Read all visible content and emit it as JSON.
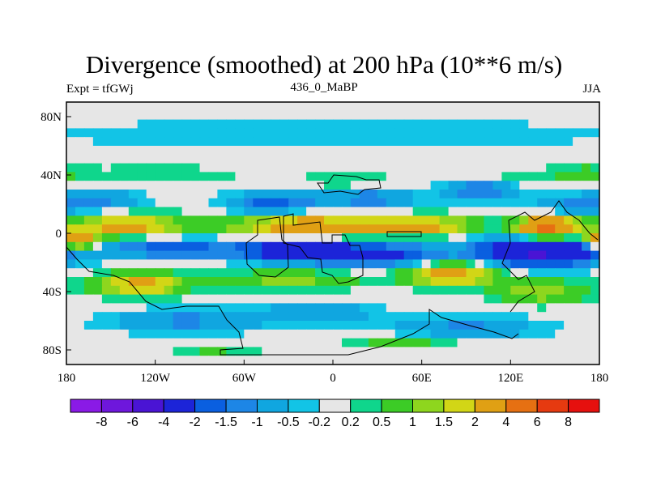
{
  "chart_data": {
    "type": "heatmap",
    "title": "Divergence (smoothed) at 200 hPa (10**6 m/s)",
    "subtitle_left": "Expt = tfGWj",
    "subtitle_center": "436_0_MaBP",
    "subtitle_right": "JJA",
    "xlim": [
      -180,
      180
    ],
    "ylim": [
      -90,
      90
    ],
    "x_ticks": [
      {
        "value": -180,
        "label": "180"
      },
      {
        "value": -120,
        "label": "120W"
      },
      {
        "value": -60,
        "label": "60W"
      },
      {
        "value": 0,
        "label": "0"
      },
      {
        "value": 60,
        "label": "60E"
      },
      {
        "value": 120,
        "label": "120E"
      },
      {
        "value": 180,
        "label": "180"
      }
    ],
    "y_ticks": [
      {
        "value": 80,
        "label": "80N"
      },
      {
        "value": 40,
        "label": "40N"
      },
      {
        "value": 0,
        "label": "0"
      },
      {
        "value": -40,
        "label": "40S"
      },
      {
        "value": -80,
        "label": "80S"
      }
    ],
    "colorbar": {
      "labels": [
        "-8",
        "-6",
        "-4",
        "-2",
        "-1.5",
        "-1",
        "-0.5",
        "-0.2",
        "0.2",
        "0.5",
        "1",
        "1.5",
        "2",
        "4",
        "6",
        "8"
      ],
      "colors": [
        "#8a1ae6",
        "#6e17dc",
        "#4a14d4",
        "#1c24d8",
        "#0a5fe0",
        "#1d86e6",
        "#10a6e0",
        "#12c4e6",
        "#e6e6e6",
        "#0fd68c",
        "#3ccc26",
        "#8ed61e",
        "#d2d616",
        "#e0a014",
        "#e67012",
        "#e63a10",
        "#e6100e"
      ]
    },
    "blobs": [
      {
        "lon": 0,
        "lat": 68,
        "val": -0.5,
        "rlon": 200,
        "rlat": 10
      },
      {
        "lon": -120,
        "lat": 40,
        "val": 0.5,
        "rlon": 60,
        "rlat": 6
      },
      {
        "lon": 10,
        "lat": 36,
        "val": 0.6,
        "rlon": 30,
        "rlat": 7
      },
      {
        "lon": 120,
        "lat": 38,
        "val": 0.5,
        "rlon": 40,
        "rlat": 6
      },
      {
        "lon": 170,
        "lat": 42,
        "val": 0.5,
        "rlon": 20,
        "rlat": 8
      },
      {
        "lon": -160,
        "lat": 22,
        "val": -1.2,
        "rlon": 30,
        "rlat": 8
      },
      {
        "lon": -40,
        "lat": 20,
        "val": -1.8,
        "rlon": 30,
        "rlat": 8
      },
      {
        "lon": 25,
        "lat": 24,
        "val": -1.3,
        "rlon": 30,
        "rlat": 8
      },
      {
        "lon": 100,
        "lat": 30,
        "val": -1.5,
        "rlon": 25,
        "rlat": 8
      },
      {
        "lon": 160,
        "lat": 18,
        "val": -1.0,
        "rlon": 25,
        "rlat": 8
      },
      {
        "lon": -140,
        "lat": 5,
        "val": 2.4,
        "rlon": 40,
        "rlat": 8
      },
      {
        "lon": -20,
        "lat": 5,
        "val": 2.8,
        "rlon": 50,
        "rlat": 8
      },
      {
        "lon": 60,
        "lat": 5,
        "val": 2.2,
        "rlon": 40,
        "rlat": 7
      },
      {
        "lon": 145,
        "lat": 3,
        "val": 5.0,
        "rlon": 20,
        "rlat": 8
      },
      {
        "lon": -175,
        "lat": -5,
        "val": 4.0,
        "rlon": 15,
        "rlat": 6
      },
      {
        "lon": -110,
        "lat": -10,
        "val": -1.8,
        "rlon": 50,
        "rlat": 7
      },
      {
        "lon": -20,
        "lat": -12,
        "val": -3.2,
        "rlon": 40,
        "rlat": 8
      },
      {
        "lon": 40,
        "lat": -15,
        "val": -2.0,
        "rlon": 40,
        "rlat": 8
      },
      {
        "lon": 140,
        "lat": -12,
        "val": -4.5,
        "rlon": 40,
        "rlat": 10
      },
      {
        "lon": -130,
        "lat": -35,
        "val": 2.3,
        "rlon": 30,
        "rlat": 8
      },
      {
        "lon": -30,
        "lat": -32,
        "val": 1.2,
        "rlon": 50,
        "rlat": 7
      },
      {
        "lon": 80,
        "lat": -28,
        "val": 2.6,
        "rlon": 30,
        "rlat": 8
      },
      {
        "lon": 140,
        "lat": -40,
        "val": 1.5,
        "rlon": 30,
        "rlat": 8
      },
      {
        "lon": -100,
        "lat": -60,
        "val": -1.2,
        "rlon": 50,
        "rlat": 8
      },
      {
        "lon": -10,
        "lat": -55,
        "val": -1.0,
        "rlon": 40,
        "rlat": 8
      },
      {
        "lon": 90,
        "lat": -65,
        "val": -1.1,
        "rlon": 50,
        "rlat": 8
      },
      {
        "lon": 50,
        "lat": -75,
        "val": 0.8,
        "rlon": 40,
        "rlat": 5
      },
      {
        "lon": -80,
        "lat": -80,
        "val": 0.6,
        "rlon": 30,
        "rlat": 4
      }
    ]
  }
}
